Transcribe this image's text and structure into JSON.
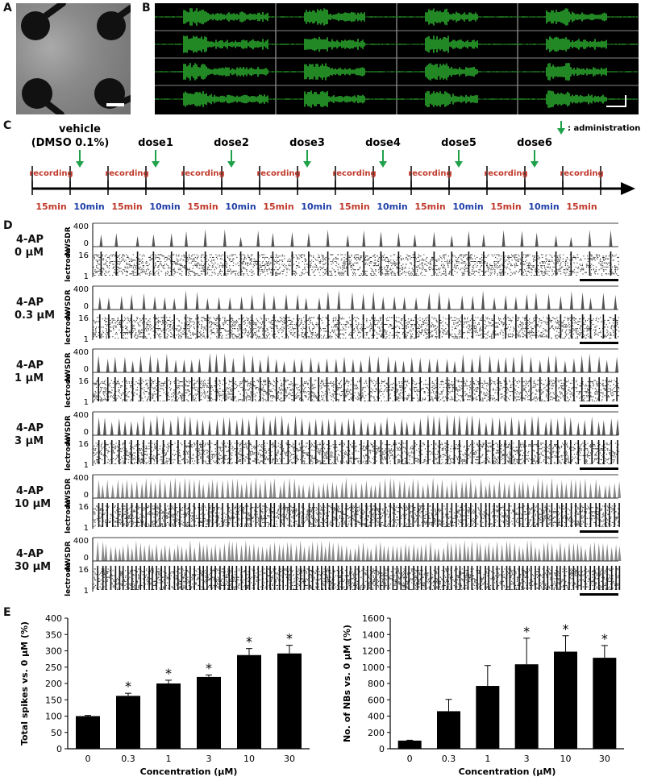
{
  "panels": {
    "a": "A",
    "b": "B",
    "c": "C",
    "d": "D",
    "e": "E"
  },
  "timeline": {
    "vehicle_line1": "vehicle",
    "vehicle_line2": "(DMSO 0.1%)",
    "doses": [
      "dose1",
      "dose2",
      "dose3",
      "dose4",
      "dose5",
      "dose6"
    ],
    "administration": ": administration",
    "recording_label": "recording",
    "rec_duration": "15min",
    "gap_duration": "10min",
    "colors": {
      "recording": "#c0392b",
      "gap": "#1f3fa8",
      "arrow": "#1fa14a"
    }
  },
  "rasters": {
    "ylabel_top": "AWSDR",
    "ylabel_bottom": "Electrode",
    "ticks": {
      "top": "400",
      "zero": "0",
      "mid": "16",
      "bottom": "1"
    },
    "conditions": [
      {
        "line1": "4-AP",
        "line2": "0 μM",
        "bursts": 30
      },
      {
        "line1": "4-AP",
        "line2": "0.3 μM",
        "bursts": 48
      },
      {
        "line1": "4-AP",
        "line2": "1 μM",
        "bursts": 62
      },
      {
        "line1": "4-AP",
        "line2": "3 μM",
        "bursts": 80
      },
      {
        "line1": "4-AP",
        "line2": "10 μM",
        "bursts": 110
      },
      {
        "line1": "4-AP",
        "line2": "30 μM",
        "bursts": 125
      }
    ]
  },
  "chart_data": [
    {
      "type": "bar",
      "categories": [
        "0",
        "0.3",
        "1",
        "3",
        "10",
        "30"
      ],
      "values": [
        100,
        162,
        200,
        220,
        287,
        292
      ],
      "errors": [
        2,
        8,
        10,
        6,
        20,
        25
      ],
      "significance": [
        "",
        "*",
        "*",
        "*",
        "*",
        "*"
      ],
      "xlabel": "Concentration (μM)",
      "ylabel": "Total spikes vs. 0 μM (%)",
      "ylim": [
        0,
        400
      ],
      "yticks": [
        "0",
        "50",
        "100",
        "150",
        "200",
        "250",
        "300",
        "350",
        "400"
      ]
    },
    {
      "type": "bar",
      "categories": [
        "0",
        "0.3",
        "1",
        "3",
        "10",
        "30"
      ],
      "values": [
        100,
        460,
        770,
        1035,
        1190,
        1115
      ],
      "errors": [
        5,
        145,
        250,
        320,
        195,
        150
      ],
      "significance": [
        "",
        "",
        "",
        "*",
        "*",
        "*"
      ],
      "xlabel": "Concentration (μM)",
      "ylabel": "No. of NBs vs. 0 μM (%)",
      "ylim": [
        0,
        1600
      ],
      "yticks": [
        "0",
        "200",
        "400",
        "600",
        "800",
        "1000",
        "1200",
        "1400",
        "1600"
      ]
    }
  ]
}
